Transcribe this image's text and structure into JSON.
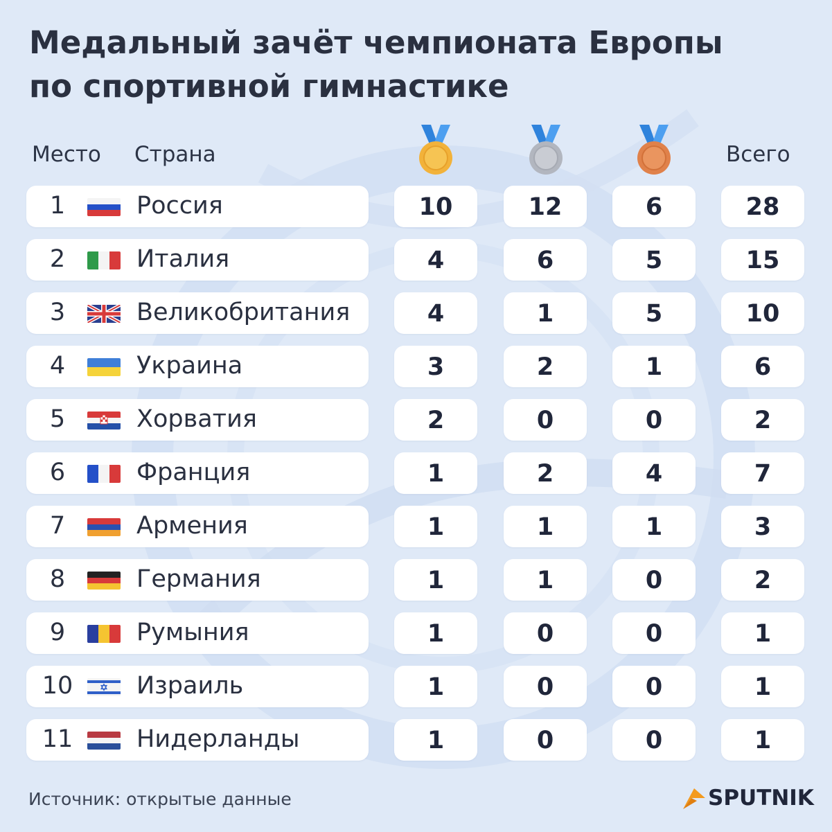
{
  "title": {
    "line1": "Медальный зачёт чемпионата Европы",
    "line2": "по спортивной гимнастике"
  },
  "headers": {
    "place": "Место",
    "country": "Страна",
    "total": "Всего"
  },
  "medal_icons": [
    "gold-medal-icon",
    "silver-medal-icon",
    "bronze-medal-icon"
  ],
  "colors": {
    "background": "#dfe9f7",
    "gold": "#f2b23a",
    "silver": "#b8bcc4",
    "bronze": "#e2864b",
    "ribbon": "#3d8fe0",
    "brand_accent": "#f39a1e"
  },
  "chart_data": {
    "type": "table",
    "columns": [
      "Место",
      "Страна",
      "gold",
      "silver",
      "bronze",
      "Всего"
    ],
    "rows": [
      {
        "place": "1",
        "country": "Россия",
        "flag": "russia-flag",
        "gold": "10",
        "silver": "12",
        "bronze": "6",
        "total": "28"
      },
      {
        "place": "2",
        "country": "Италия",
        "flag": "italy-flag",
        "gold": "4",
        "silver": "6",
        "bronze": "5",
        "total": "15"
      },
      {
        "place": "3",
        "country": "Великобритания",
        "flag": "uk-flag",
        "gold": "4",
        "silver": "1",
        "bronze": "5",
        "total": "10"
      },
      {
        "place": "4",
        "country": "Украина",
        "flag": "ukraine-flag",
        "gold": "3",
        "silver": "2",
        "bronze": "1",
        "total": "6"
      },
      {
        "place": "5",
        "country": "Хорватия",
        "flag": "croatia-flag",
        "gold": "2",
        "silver": "0",
        "bronze": "0",
        "total": "2"
      },
      {
        "place": "6",
        "country": "Франция",
        "flag": "france-flag",
        "gold": "1",
        "silver": "2",
        "bronze": "4",
        "total": "7"
      },
      {
        "place": "7",
        "country": "Армения",
        "flag": "armenia-flag",
        "gold": "1",
        "silver": "1",
        "bronze": "1",
        "total": "3"
      },
      {
        "place": "8",
        "country": "Германия",
        "flag": "germany-flag",
        "gold": "1",
        "silver": "1",
        "bronze": "0",
        "total": "2"
      },
      {
        "place": "9",
        "country": "Румыния",
        "flag": "romania-flag",
        "gold": "1",
        "silver": "0",
        "bronze": "0",
        "total": "1"
      },
      {
        "place": "10",
        "country": "Израиль",
        "flag": "israel-flag",
        "gold": "1",
        "silver": "0",
        "bronze": "0",
        "total": "1"
      },
      {
        "place": "11",
        "country": "Нидерланды",
        "flag": "netherlands-flag",
        "gold": "1",
        "silver": "0",
        "bronze": "0",
        "total": "1"
      }
    ]
  },
  "footer": {
    "source": "Источник: открытые данные",
    "brand": "SPUTNIK"
  }
}
